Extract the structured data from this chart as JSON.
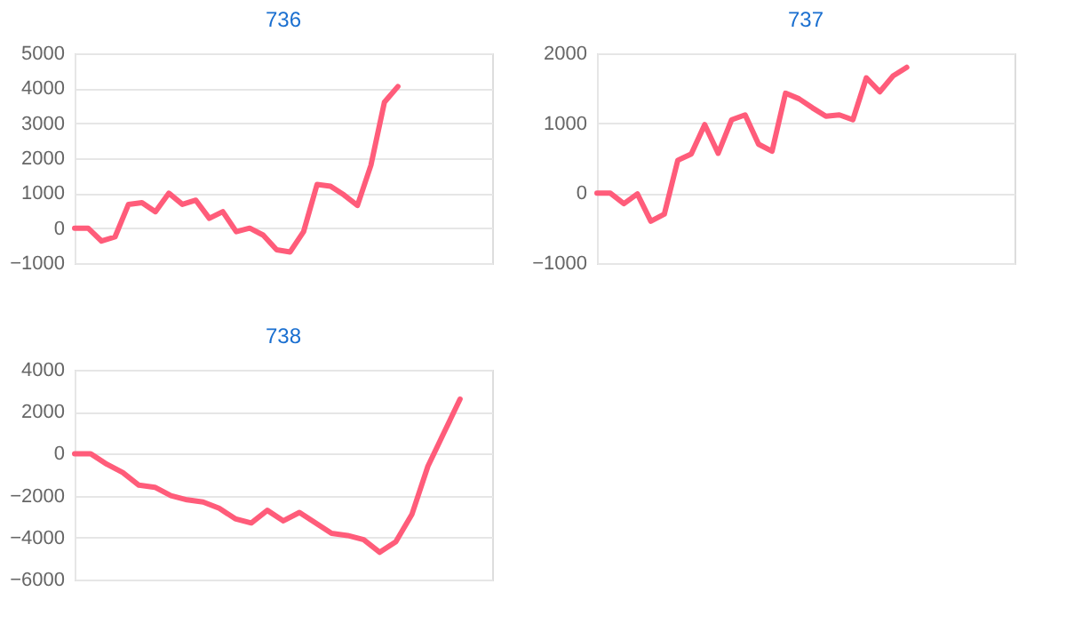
{
  "chart_data": [
    {
      "type": "line",
      "title": "736",
      "categories": [
        null,
        null,
        null,
        null,
        null,
        null,
        null,
        null,
        null,
        null,
        null,
        null,
        null,
        null,
        null,
        null,
        null,
        null,
        null,
        null,
        null,
        null,
        null,
        null,
        null,
        null,
        null,
        null,
        null,
        null,
        null,
        null
      ],
      "series": [
        {
          "color": "#ff5c7a",
          "values": [
            0,
            0,
            -370,
            -250,
            680,
            730,
            470,
            1000,
            680,
            800,
            280,
            470,
            -100,
            0,
            -200,
            -620,
            -680,
            -100,
            1250,
            1200,
            950,
            650,
            1800,
            3600,
            4050,
            null,
            null,
            null,
            null,
            null,
            null,
            null
          ]
        }
      ],
      "ylim": [
        -1000,
        5000
      ],
      "yticks": [
        -1000,
        0,
        1000,
        2000,
        3000,
        4000,
        5000
      ],
      "grid": "y",
      "tick_labels": "y",
      "marker": "none",
      "line_style": "solid"
    },
    {
      "type": "line",
      "title": "737",
      "categories": [
        null,
        null,
        null,
        null,
        null,
        null,
        null,
        null,
        null,
        null,
        null,
        null,
        null,
        null,
        null,
        null,
        null,
        null,
        null,
        null,
        null,
        null,
        null,
        null,
        null,
        null,
        null,
        null,
        null,
        null,
        null,
        null
      ],
      "series": [
        {
          "color": "#ff5c7a",
          "values": [
            0,
            0,
            -150,
            -10,
            -400,
            -300,
            470,
            560,
            980,
            570,
            1050,
            1120,
            700,
            600,
            1430,
            1350,
            1220,
            1100,
            1120,
            1050,
            1650,
            1450,
            1680,
            1800,
            null,
            null,
            null,
            null,
            null,
            null,
            null,
            null
          ]
        }
      ],
      "ylim": [
        -1000,
        2000
      ],
      "yticks": [
        -1000,
        0,
        1000,
        2000
      ],
      "grid": "y",
      "tick_labels": "y",
      "marker": "none",
      "line_style": "solid"
    },
    {
      "type": "line",
      "title": "738",
      "categories": [
        null,
        null,
        null,
        null,
        null,
        null,
        null,
        null,
        null,
        null,
        null,
        null,
        null,
        null,
        null,
        null,
        null,
        null,
        null,
        null,
        null,
        null,
        null,
        null,
        null,
        null,
        null
      ],
      "series": [
        {
          "color": "#ff5c7a",
          "values": [
            0,
            0,
            -500,
            -900,
            -1500,
            -1600,
            -2000,
            -2200,
            -2300,
            -2600,
            -3100,
            -3300,
            -2700,
            -3200,
            -2800,
            -3300,
            -3800,
            -3900,
            -4100,
            -4700,
            -4200,
            -2900,
            -600,
            1000,
            2600,
            null,
            null
          ]
        }
      ],
      "ylim": [
        -6000,
        4000
      ],
      "yticks": [
        -6000,
        -4000,
        -2000,
        0,
        2000,
        4000
      ],
      "grid": "y",
      "tick_labels": "y",
      "marker": "none",
      "line_style": "solid"
    }
  ]
}
